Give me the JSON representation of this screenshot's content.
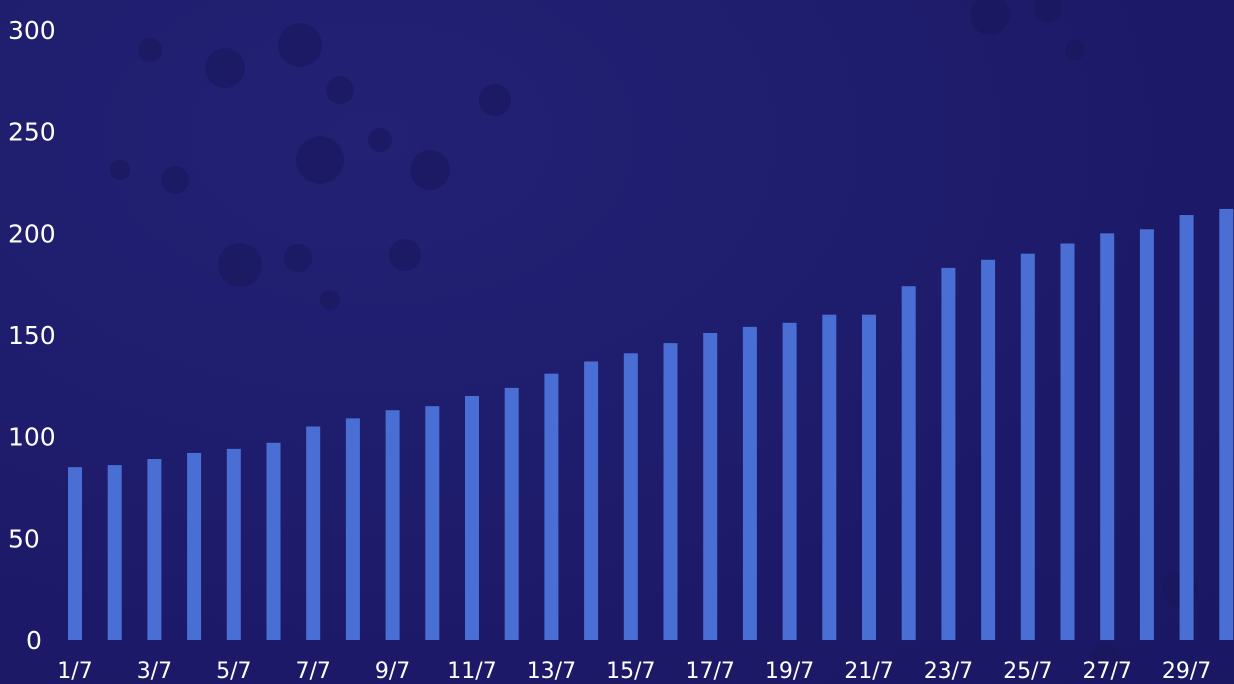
{
  "chart_data": {
    "type": "bar",
    "categories": [
      "1/7",
      "2/7",
      "3/7",
      "4/7",
      "5/7",
      "6/7",
      "7/7",
      "8/7",
      "9/7",
      "10/7",
      "11/7",
      "12/7",
      "13/7",
      "14/7",
      "15/7",
      "16/7",
      "17/7",
      "18/7",
      "19/7",
      "20/7",
      "21/7",
      "22/7",
      "23/7",
      "24/7",
      "25/7",
      "26/7",
      "27/7",
      "28/7",
      "29/7",
      "30/7"
    ],
    "x_tick_labels": [
      "1/7",
      "3/7",
      "5/7",
      "7/7",
      "9/7",
      "11/7",
      "13/7",
      "15/7",
      "17/7",
      "19/7",
      "21/7",
      "23/7",
      "25/7",
      "27/7",
      "29/7"
    ],
    "values": [
      85,
      86,
      89,
      92,
      94,
      97,
      105,
      109,
      113,
      115,
      120,
      124,
      131,
      137,
      141,
      146,
      151,
      154,
      156,
      160,
      160,
      174,
      183,
      187,
      190,
      195,
      200,
      202,
      209,
      212
    ],
    "y_ticks": [
      0,
      50,
      100,
      150,
      200,
      250,
      300
    ],
    "ylim": [
      0,
      300
    ],
    "bar_color": "#4a6fd4",
    "background_color": "#1c1a66",
    "grid": false,
    "legend": "none",
    "title": "",
    "xlabel": "",
    "ylabel": ""
  }
}
